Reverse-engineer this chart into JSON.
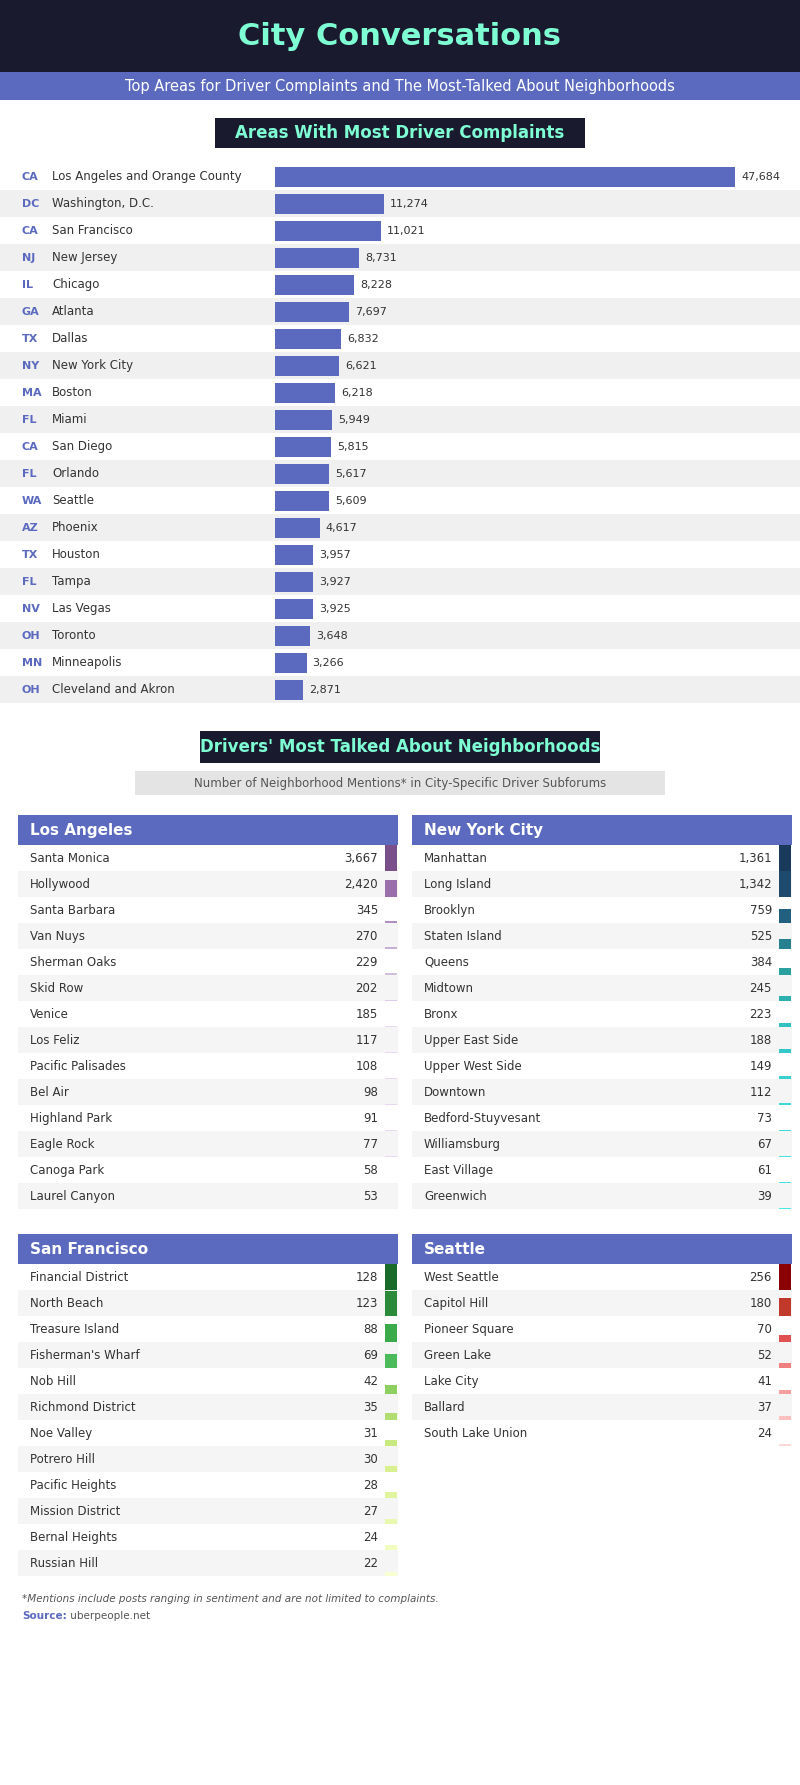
{
  "title": "City Conversations",
  "subtitle": "Top Areas for Driver Complaints and The Most-Talked About Neighborhoods",
  "section1_title": "Areas With Most Driver Complaints",
  "section2_title": "Drivers' Most Talked About Neighborhoods",
  "section2_subtitle": "Number of Neighborhood Mentions* in City-Specific Driver Subforums",
  "complaints": [
    {
      "state": "CA",
      "city": "Los Angeles and Orange County",
      "value": 47684
    },
    {
      "state": "DC",
      "city": "Washington, D.C.",
      "value": 11274
    },
    {
      "state": "CA",
      "city": "San Francisco",
      "value": 11021
    },
    {
      "state": "NJ",
      "city": "New Jersey",
      "value": 8731
    },
    {
      "state": "IL",
      "city": "Chicago",
      "value": 8228
    },
    {
      "state": "GA",
      "city": "Atlanta",
      "value": 7697
    },
    {
      "state": "TX",
      "city": "Dallas",
      "value": 6832
    },
    {
      "state": "NY",
      "city": "New York City",
      "value": 6621
    },
    {
      "state": "MA",
      "city": "Boston",
      "value": 6218
    },
    {
      "state": "FL",
      "city": "Miami",
      "value": 5949
    },
    {
      "state": "CA",
      "city": "San Diego",
      "value": 5815
    },
    {
      "state": "FL",
      "city": "Orlando",
      "value": 5617
    },
    {
      "state": "WA",
      "city": "Seattle",
      "value": 5609
    },
    {
      "state": "AZ",
      "city": "Phoenix",
      "value": 4617
    },
    {
      "state": "TX",
      "city": "Houston",
      "value": 3957
    },
    {
      "state": "FL",
      "city": "Tampa",
      "value": 3927
    },
    {
      "state": "NV",
      "city": "Las Vegas",
      "value": 3925
    },
    {
      "state": "OH",
      "city": "Toronto",
      "value": 3648
    },
    {
      "state": "MN",
      "city": "Minneapolis",
      "value": 3266
    },
    {
      "state": "OH",
      "city": "Cleveland and Akron",
      "value": 2871
    }
  ],
  "neighborhoods": [
    {
      "city": "Los Angeles",
      "header_color": "#5b6abf",
      "bar_colors": [
        "#7b4f8a",
        "#9b6faa",
        "#b090c0",
        "#c8b0d5",
        "#d4bedd",
        "#deccec",
        "#e8d8f2",
        "#e8d8f2",
        "#e8d8f2",
        "#e8d8f2",
        "#e8d8f2",
        "#e8d8f2",
        "#e8d8f2",
        "#e8d8f2"
      ],
      "items": [
        {
          "name": "Santa Monica",
          "value": 3667
        },
        {
          "name": "Hollywood",
          "value": 2420
        },
        {
          "name": "Santa Barbara",
          "value": 345
        },
        {
          "name": "Van Nuys",
          "value": 270
        },
        {
          "name": "Sherman Oaks",
          "value": 229
        },
        {
          "name": "Skid Row",
          "value": 202
        },
        {
          "name": "Venice",
          "value": 185
        },
        {
          "name": "Los Feliz",
          "value": 117
        },
        {
          "name": "Pacific Palisades",
          "value": 108
        },
        {
          "name": "Bel Air",
          "value": 98
        },
        {
          "name": "Highland Park",
          "value": 91
        },
        {
          "name": "Eagle Rock",
          "value": 77
        },
        {
          "name": "Canoga Park",
          "value": 58
        },
        {
          "name": "Laurel Canyon",
          "value": 53
        }
      ]
    },
    {
      "city": "New York City",
      "header_color": "#5b6abf",
      "bar_colors": [
        "#1a3a5c",
        "#1e4a6e",
        "#226080",
        "#268090",
        "#2aa0a0",
        "#2eb0b0",
        "#32c0c0",
        "#36c8c8",
        "#3ad0d0",
        "#3ed8d8",
        "#40dcdc",
        "#42e0e0",
        "#44e4e4",
        "#46e8e8"
      ],
      "items": [
        {
          "name": "Manhattan",
          "value": 1361
        },
        {
          "name": "Long Island",
          "value": 1342
        },
        {
          "name": "Brooklyn",
          "value": 759
        },
        {
          "name": "Staten Island",
          "value": 525
        },
        {
          "name": "Queens",
          "value": 384
        },
        {
          "name": "Midtown",
          "value": 245
        },
        {
          "name": "Bronx",
          "value": 223
        },
        {
          "name": "Upper East Side",
          "value": 188
        },
        {
          "name": "Upper West Side",
          "value": 149
        },
        {
          "name": "Downtown",
          "value": 112
        },
        {
          "name": "Bedford-Stuyvesant",
          "value": 73
        },
        {
          "name": "Williamsburg",
          "value": 67
        },
        {
          "name": "East Village",
          "value": 61
        },
        {
          "name": "Greenwich",
          "value": 39
        }
      ]
    },
    {
      "city": "San Francisco",
      "header_color": "#5b6abf",
      "bar_colors": [
        "#1a6b2a",
        "#2a8a3a",
        "#3aaa4a",
        "#4aba5a",
        "#8ed060",
        "#b0dc70",
        "#c8e880",
        "#d8f090",
        "#e0f4a0",
        "#e8f8b0",
        "#f0fcc0",
        "#f8ffd0"
      ],
      "items": [
        {
          "name": "Financial District",
          "value": 128
        },
        {
          "name": "North Beach",
          "value": 123
        },
        {
          "name": "Treasure Island",
          "value": 88
        },
        {
          "name": "Fisherman's Wharf",
          "value": 69
        },
        {
          "name": "Nob Hill",
          "value": 42
        },
        {
          "name": "Richmond District",
          "value": 35
        },
        {
          "name": "Noe Valley",
          "value": 31
        },
        {
          "name": "Potrero Hill",
          "value": 30
        },
        {
          "name": "Pacific Heights",
          "value": 28
        },
        {
          "name": "Mission District",
          "value": 27
        },
        {
          "name": "Bernal Heights",
          "value": 24
        },
        {
          "name": "Russian Hill",
          "value": 22
        }
      ]
    },
    {
      "city": "Seattle",
      "header_color": "#5b6abf",
      "bar_colors": [
        "#8b0000",
        "#c0392b",
        "#e05050",
        "#f08080",
        "#f8a0a0",
        "#fcc0c0",
        "#fdd8d8"
      ],
      "items": [
        {
          "name": "West Seattle",
          "value": 256
        },
        {
          "name": "Capitol Hill",
          "value": 180
        },
        {
          "name": "Pioneer Square",
          "value": 70
        },
        {
          "name": "Green Lake",
          "value": 52
        },
        {
          "name": "Lake City",
          "value": 41
        },
        {
          "name": "Ballard",
          "value": 37
        },
        {
          "name": "South Lake Union",
          "value": 24
        }
      ]
    }
  ],
  "footer_note": "*Mentions include posts ranging in sentiment and are not limited to complaints.",
  "footer_source_label": "Source:",
  "footer_source_text": " uberpeople.net",
  "header_bg": "#1a1a2e",
  "subtitle_bg": "#5b6abf",
  "bar_color": "#5b6abf",
  "title_color": "#7fffd4",
  "subtitle_text_color": "#ffffff",
  "state_color": "#5b6abf",
  "source_color": "#5b6abf"
}
